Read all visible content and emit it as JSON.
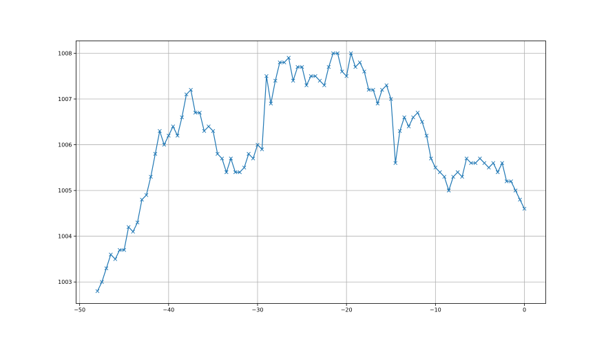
{
  "chart_data": {
    "type": "line",
    "title": "",
    "xlabel": "",
    "ylabel": "",
    "xlim": [
      -50.4,
      2.4
    ],
    "ylim": [
      1002.53,
      1008.27
    ],
    "grid": true,
    "marker": "x",
    "line_color": "#1f77b4",
    "xticks": [
      -50,
      -40,
      -30,
      -20,
      -10,
      0
    ],
    "xtick_labels": [
      "−50",
      "−40",
      "−30",
      "−20",
      "−10",
      "0"
    ],
    "yticks": [
      1003,
      1004,
      1005,
      1006,
      1007,
      1008
    ],
    "ytick_labels": [
      "1003",
      "1004",
      "1005",
      "1006",
      "1007",
      "1008"
    ],
    "series": [
      {
        "x": [
          -48,
          -47.5,
          -47,
          -46.5,
          -46,
          -45.5,
          -45,
          -44.5,
          -44,
          -43.5,
          -43,
          -42.5,
          -42,
          -41.5,
          -41,
          -40.5,
          -40,
          -39.5,
          -39,
          -38.5,
          -38,
          -37.5,
          -37,
          -36.5,
          -36,
          -35.5,
          -35,
          -34.5,
          -34,
          -33.5,
          -33,
          -32.5,
          -32,
          -31.5,
          -31,
          -30.5,
          -30,
          -29.5,
          -29,
          -28.5,
          -28,
          -27.5,
          -27,
          -26.5,
          -26,
          -25.5,
          -25,
          -24.5,
          -24,
          -23.5,
          -23,
          -22.5,
          -22,
          -21.5,
          -21,
          -20.5,
          -20,
          -19.5,
          -19,
          -18.5,
          -18,
          -17.5,
          -17,
          -16.5,
          -16,
          -15.5,
          -15,
          -14.5,
          -14,
          -13.5,
          -13,
          -12.5,
          -12,
          -11.5,
          -11,
          -10.5,
          -10,
          -9.5,
          -9,
          -8.5,
          -8,
          -7.5,
          -7,
          -6.5,
          -6,
          -5.5,
          -5,
          -4.5,
          -4,
          -3.5,
          -3,
          -2.5,
          -2,
          -1.5,
          -1,
          -0.5,
          0
        ],
        "y": [
          1002.8,
          1003.0,
          1003.3,
          1003.6,
          1003.5,
          1003.7,
          1003.7,
          1004.2,
          1004.1,
          1004.3,
          1004.8,
          1004.9,
          1005.3,
          1005.8,
          1006.3,
          1006.0,
          1006.2,
          1006.4,
          1006.2,
          1006.6,
          1007.1,
          1007.2,
          1006.7,
          1006.7,
          1006.3,
          1006.4,
          1006.3,
          1005.8,
          1005.7,
          1005.4,
          1005.7,
          1005.4,
          1005.4,
          1005.5,
          1005.8,
          1005.7,
          1006.0,
          1005.9,
          1007.5,
          1006.9,
          1007.4,
          1007.8,
          1007.8,
          1007.9,
          1007.4,
          1007.7,
          1007.7,
          1007.3,
          1007.5,
          1007.5,
          1007.4,
          1007.3,
          1007.7,
          1008.0,
          1008.0,
          1007.6,
          1007.5,
          1008.0,
          1007.7,
          1007.8,
          1007.6,
          1007.2,
          1007.2,
          1006.9,
          1007.2,
          1007.3,
          1007.0,
          1005.6,
          1006.3,
          1006.6,
          1006.4,
          1006.6,
          1006.7,
          1006.5,
          1006.2,
          1005.7,
          1005.5,
          1005.4,
          1005.3,
          1005.0,
          1005.3,
          1005.4,
          1005.3,
          1005.7,
          1005.6,
          1005.6,
          1005.7,
          1005.6,
          1005.5,
          1005.6,
          1005.4,
          1005.6,
          1005.2,
          1005.2,
          1005.0,
          1004.8,
          1004.6
        ]
      }
    ]
  }
}
